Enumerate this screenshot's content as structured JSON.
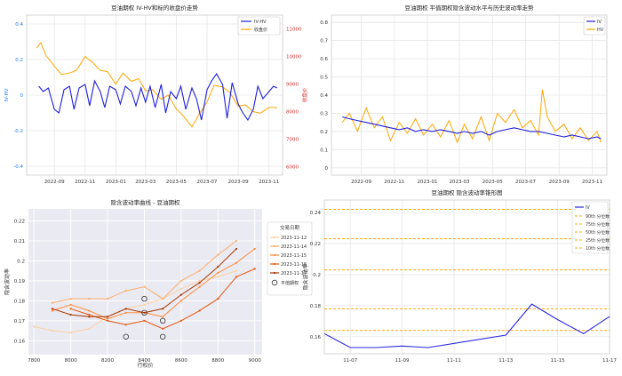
{
  "chart_data": [
    {
      "type": "line",
      "title": "豆油期权 IV-HV和标的收盘价走势",
      "xlabel": "",
      "ylabel_left": "IV-HV",
      "ylabel_right": "收盘价",
      "x_ticks": [
        "2022-09",
        "2022-11",
        "2023-01",
        "2023-03",
        "2023-05",
        "2023-07",
        "2023-09",
        "2023-11"
      ],
      "xlim": [
        "2022-07-08",
        "2023-11-28"
      ],
      "ylim_left": [
        -0.45,
        0.45
      ],
      "y_ticks_left": [
        -0.4,
        -0.2,
        0.0,
        0.2,
        0.4
      ],
      "ylim_right": [
        5700,
        11500
      ],
      "y_ticks_right": [
        6000,
        7000,
        8000,
        9000,
        10000,
        11000
      ],
      "grid": true,
      "legend": "top-right",
      "series": [
        {
          "name": "IV-HV",
          "axis": "left",
          "color": "#1f1fdb",
          "x": [
            "2022-08-01",
            "2022-08-10",
            "2022-08-20",
            "2022-09-01",
            "2022-09-10",
            "2022-09-20",
            "2022-10-01",
            "2022-10-10",
            "2022-10-20",
            "2022-11-01",
            "2022-11-10",
            "2022-11-20",
            "2022-12-01",
            "2022-12-10",
            "2022-12-20",
            "2023-01-01",
            "2023-01-10",
            "2023-01-20",
            "2023-02-01",
            "2023-02-10",
            "2023-02-20",
            "2023-03-01",
            "2023-03-10",
            "2023-03-20",
            "2023-04-01",
            "2023-04-10",
            "2023-04-20",
            "2023-05-01",
            "2023-05-10",
            "2023-05-20",
            "2023-06-01",
            "2023-06-10",
            "2023-06-20",
            "2023-07-01",
            "2023-07-10",
            "2023-07-20",
            "2023-08-01",
            "2023-08-10",
            "2023-08-20",
            "2023-09-01",
            "2023-09-10",
            "2023-09-20",
            "2023-10-01",
            "2023-10-10",
            "2023-10-20",
            "2023-11-01",
            "2023-11-10",
            "2023-11-17"
          ],
          "values": [
            0.05,
            0.02,
            0.04,
            -0.08,
            -0.1,
            0.03,
            0.05,
            -0.08,
            0.04,
            0.06,
            -0.06,
            0.08,
            0.02,
            -0.07,
            0.05,
            0.03,
            -0.05,
            0.05,
            0.02,
            -0.06,
            0.04,
            -0.04,
            0.05,
            -0.07,
            0.06,
            -0.1,
            0.02,
            -0.02,
            0.05,
            -0.08,
            0.04,
            -0.02,
            -0.14,
            0.03,
            0.08,
            0.12,
            0.06,
            -0.13,
            0.07,
            -0.05,
            -0.1,
            -0.14,
            -0.08,
            0.05,
            -0.02,
            0.02,
            0.05,
            0.04
          ]
        },
        {
          "name": "收盘价",
          "axis": "right",
          "color": "#ffa500",
          "x": [
            "2022-07-28",
            "2022-08-05",
            "2022-08-15",
            "2022-09-01",
            "2022-09-15",
            "2022-10-01",
            "2022-10-15",
            "2022-11-01",
            "2022-11-15",
            "2022-12-01",
            "2022-12-15",
            "2023-01-01",
            "2023-01-15",
            "2023-02-01",
            "2023-02-15",
            "2023-03-01",
            "2023-03-15",
            "2023-04-01",
            "2023-04-15",
            "2023-05-01",
            "2023-05-15",
            "2023-06-01",
            "2023-06-15",
            "2023-07-01",
            "2023-07-15",
            "2023-08-01",
            "2023-08-15",
            "2023-09-01",
            "2023-09-15",
            "2023-10-01",
            "2023-10-15",
            "2023-11-01",
            "2023-11-17"
          ],
          "values": [
            10300,
            10500,
            10050,
            9650,
            9350,
            9400,
            9500,
            10000,
            9800,
            9500,
            9450,
            9000,
            9400,
            9100,
            9200,
            8750,
            8800,
            8450,
            8600,
            8100,
            7850,
            7450,
            7900,
            8350,
            8950,
            8900,
            8700,
            8200,
            8250,
            8000,
            7950,
            8150,
            8150
          ]
        }
      ]
    },
    {
      "type": "line",
      "title": "豆油期权 平值期权隐含波动水平与历史波动率走势",
      "xlabel": "",
      "ylabel": "",
      "x_ticks": [
        "2022-09",
        "2022-11",
        "2023-01",
        "2023-03",
        "2023-05",
        "2023-07",
        "2023-09",
        "2023-11"
      ],
      "xlim": [
        "2022-07-08",
        "2023-11-28"
      ],
      "ylim": [
        -0.04,
        0.84
      ],
      "y_ticks": [
        0.0,
        0.1,
        0.2,
        0.3,
        0.4,
        0.5,
        0.6,
        0.7,
        0.8
      ],
      "grid": true,
      "legend": "top-right",
      "series": [
        {
          "name": "IV",
          "color": "#1f1fdb",
          "x": [
            "2022-07-28",
            "2022-08-10",
            "2022-08-25",
            "2022-09-10",
            "2022-09-25",
            "2022-10-10",
            "2022-10-25",
            "2022-11-10",
            "2022-11-25",
            "2022-12-10",
            "2022-12-25",
            "2023-01-10",
            "2023-01-25",
            "2023-02-10",
            "2023-02-25",
            "2023-03-10",
            "2023-03-25",
            "2023-04-10",
            "2023-04-25",
            "2023-05-10",
            "2023-05-25",
            "2023-06-10",
            "2023-06-25",
            "2023-07-10",
            "2023-07-25",
            "2023-08-10",
            "2023-08-25",
            "2023-09-10",
            "2023-09-25",
            "2023-10-10",
            "2023-10-25",
            "2023-11-10",
            "2023-11-17"
          ],
          "values": [
            0.28,
            0.27,
            0.26,
            0.25,
            0.24,
            0.23,
            0.22,
            0.21,
            0.22,
            0.2,
            0.21,
            0.2,
            0.21,
            0.2,
            0.19,
            0.2,
            0.19,
            0.2,
            0.18,
            0.2,
            0.21,
            0.22,
            0.21,
            0.2,
            0.2,
            0.19,
            0.18,
            0.17,
            0.18,
            0.17,
            0.16,
            0.17,
            0.16
          ]
        },
        {
          "name": "HV",
          "color": "#ffa500",
          "x": [
            "2022-07-28",
            "2022-08-10",
            "2022-08-25",
            "2022-09-10",
            "2022-09-25",
            "2022-10-10",
            "2022-10-25",
            "2022-11-10",
            "2022-11-25",
            "2022-12-10",
            "2022-12-25",
            "2023-01-10",
            "2023-01-25",
            "2023-02-10",
            "2023-02-25",
            "2023-03-10",
            "2023-03-25",
            "2023-04-10",
            "2023-04-25",
            "2023-05-10",
            "2023-05-25",
            "2023-06-10",
            "2023-06-25",
            "2023-07-10",
            "2023-07-25",
            "2023-08-01",
            "2023-08-10",
            "2023-08-25",
            "2023-09-10",
            "2023-09-25",
            "2023-10-10",
            "2023-10-25",
            "2023-11-10",
            "2023-11-17"
          ],
          "values": [
            0.25,
            0.3,
            0.2,
            0.33,
            0.22,
            0.28,
            0.15,
            0.25,
            0.19,
            0.27,
            0.18,
            0.24,
            0.17,
            0.26,
            0.14,
            0.24,
            0.16,
            0.28,
            0.15,
            0.3,
            0.25,
            0.32,
            0.22,
            0.26,
            0.18,
            0.43,
            0.28,
            0.2,
            0.24,
            0.16,
            0.22,
            0.15,
            0.2,
            0.14
          ]
        }
      ]
    },
    {
      "type": "line",
      "title": "隐含波动率曲线 - 豆油期权",
      "xlabel": "行权价",
      "ylabel": "隐含波动率",
      "xlim": [
        7770,
        9040
      ],
      "x_ticks": [
        7800,
        8000,
        8200,
        8400,
        8600,
        8800,
        9000
      ],
      "ylim": [
        0.153,
        0.226
      ],
      "y_ticks": [
        0.16,
        0.17,
        0.18,
        0.19,
        0.2,
        0.21,
        0.22
      ],
      "grid": true,
      "legend_title": "交易日期",
      "legend": "right",
      "series": [
        {
          "name": "2023-11-12",
          "color": "#fdd0a2",
          "x": [
            7800,
            7900,
            8000,
            8100,
            8200,
            8300,
            8400,
            8500,
            8600,
            8700,
            8800,
            8900
          ],
          "values": [
            0.167,
            0.165,
            0.164,
            0.166,
            0.172,
            0.176,
            0.178,
            0.181,
            0.186,
            0.19,
            0.192,
            0.195
          ]
        },
        {
          "name": "2023-11-14",
          "color": "#fdae6b",
          "x": [
            7900,
            8000,
            8100,
            8200,
            8300,
            8400,
            8500,
            8600,
            8700,
            8800,
            8900
          ],
          "values": [
            0.179,
            0.181,
            0.181,
            0.181,
            0.185,
            0.187,
            0.181,
            0.19,
            0.195,
            0.203,
            0.21
          ]
        },
        {
          "name": "2023-11-15",
          "color": "#fd8d3c",
          "x": [
            7900,
            8000,
            8100,
            8200,
            8300,
            8400,
            8500,
            8600,
            8700,
            8800,
            8900,
            9000
          ],
          "values": [
            0.175,
            0.178,
            0.175,
            0.171,
            0.174,
            0.174,
            0.172,
            0.18,
            0.187,
            0.194,
            0.199,
            0.206
          ]
        },
        {
          "name": "2023-11-16",
          "color": "#e6550d",
          "x": [
            8000,
            8100,
            8200,
            8300,
            8400,
            8500,
            8600,
            8700,
            8800,
            8900,
            9000
          ],
          "values": [
            0.176,
            0.173,
            0.17,
            0.168,
            0.17,
            0.166,
            0.17,
            0.175,
            0.181,
            0.192,
            0.196
          ]
        },
        {
          "name": "2023-11-17",
          "color": "#a63603",
          "x": [
            7900,
            8000,
            8100,
            8200,
            8300,
            8400,
            8500,
            8600,
            8700,
            8800,
            8900
          ],
          "values": [
            0.176,
            0.173,
            0.172,
            0.172,
            0.176,
            0.174,
            0.176,
            0.183,
            0.189,
            0.197,
            0.206
          ]
        }
      ],
      "atm_points": {
        "name": "平值期权",
        "x": [
          8300,
          8400,
          8400,
          8500,
          8500
        ],
        "values": [
          0.162,
          0.174,
          0.181,
          0.162,
          0.17
        ]
      }
    },
    {
      "type": "line",
      "title": "豆油期权 隐含波动率锥形图",
      "xlabel": "",
      "ylabel": "隐含波动率",
      "x_ticks": [
        "11-07",
        "11-09",
        "11-11",
        "11-13",
        "11-15",
        "11-17"
      ],
      "xlim": [
        "2023-11-06",
        "2023-11-17"
      ],
      "ylim": [
        0.149,
        0.248
      ],
      "y_ticks": [
        0.16,
        0.18,
        0.2,
        0.22,
        0.24
      ],
      "grid": true,
      "legend": "top-right",
      "series": [
        {
          "name": "IV",
          "color": "#2a2ae0",
          "x": [
            "2023-11-06",
            "2023-11-07",
            "2023-11-08",
            "2023-11-09",
            "2023-11-10",
            "2023-11-13",
            "2023-11-14",
            "2023-11-15",
            "2023-11-16",
            "2023-11-17"
          ],
          "values": [
            0.162,
            0.153,
            0.153,
            0.154,
            0.153,
            0.161,
            0.181,
            0.171,
            0.162,
            0.173
          ]
        }
      ],
      "percentiles": [
        {
          "name": "90th 分位数",
          "value": 0.242
        },
        {
          "name": "75th 分位数",
          "value": 0.223
        },
        {
          "name": "50th 分位数",
          "value": 0.203
        },
        {
          "name": "25th 分位数",
          "value": 0.178
        },
        {
          "name": "10th 分位数",
          "value": 0.164
        }
      ],
      "percentile_color": "#ffa500"
    }
  ]
}
